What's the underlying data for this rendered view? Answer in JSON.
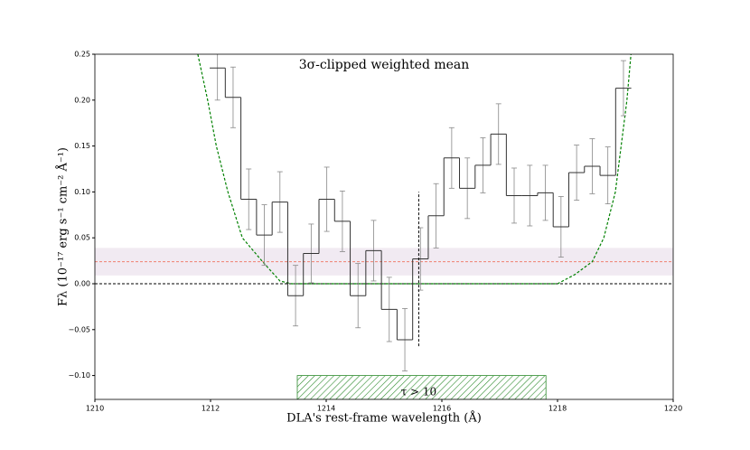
{
  "chart_data": {
    "type": "step",
    "title": "3σ-clipped weighted mean",
    "x_label": "DLA's rest-frame wavelength (Å)",
    "y_label": "Fλ (10⁻¹⁷ erg s⁻¹ cm⁻² Å⁻¹)",
    "x": [
      1212.12,
      1212.39,
      1212.66,
      1212.93,
      1213.2,
      1213.47,
      1213.74,
      1214.01,
      1214.28,
      1214.55,
      1214.82,
      1215.09,
      1215.36,
      1215.63,
      1215.9,
      1216.17,
      1216.44,
      1216.71,
      1216.98,
      1217.25,
      1217.52,
      1217.79,
      1218.06,
      1218.33,
      1218.6,
      1218.87,
      1219.14
    ],
    "values": [
      0.235,
      0.203,
      0.092,
      0.053,
      0.089,
      -0.013,
      0.033,
      0.092,
      0.068,
      -0.013,
      0.036,
      -0.028,
      -0.061,
      0.027,
      0.074,
      0.137,
      0.104,
      0.129,
      0.163,
      0.096,
      0.096,
      0.099,
      0.062,
      0.121,
      0.128,
      0.118,
      0.213
    ],
    "errors": [
      0.035,
      0.033,
      0.033,
      0.033,
      0.033,
      0.033,
      0.032,
      0.035,
      0.033,
      0.035,
      0.033,
      0.035,
      0.034,
      0.034,
      0.035,
      0.033,
      0.033,
      0.03,
      0.033,
      0.03,
      0.033,
      0.03,
      0.033,
      0.03,
      0.03,
      0.031,
      0.03
    ],
    "color": "#333333",
    "model": {
      "x": [
        1211.78,
        1211.95,
        1212.1,
        1212.3,
        1212.55,
        1212.9,
        1213.2,
        1213.4,
        1218.0,
        1218.3,
        1218.6,
        1218.8,
        1219.0,
        1219.1,
        1219.2,
        1219.27
      ],
      "values": [
        0.25,
        0.2,
        0.15,
        0.1,
        0.05,
        0.024,
        0.003,
        0,
        0,
        0.01,
        0.024,
        0.05,
        0.1,
        0.15,
        0.2,
        0.25
      ],
      "color": "#008000"
    },
    "band": [
      0.009,
      0.039
    ],
    "band_color": "#e8dcea",
    "hlines": [
      {
        "y": 0.024,
        "color": "#f08070"
      },
      {
        "y": 0,
        "color": "#000000"
      }
    ],
    "vline": {
      "x": 1215.6,
      "ymin": -0.068,
      "ymax": 0.1
    },
    "hatch": {
      "x": [
        1213.5,
        1217.8
      ],
      "y": [
        -0.1,
        -0.126
      ],
      "label": "τ > 10",
      "color": "#2e8b2e"
    },
    "xlim": [
      1210,
      1220
    ],
    "ylim": [
      -0.126,
      0.25
    ],
    "xticks": [
      1210,
      1212,
      1214,
      1216,
      1218,
      1220
    ],
    "yticks": [
      0.25,
      {
        "value": 0.2,
        "label": "0.20"
      },
      0.15,
      {
        "value": 0.1,
        "label": "0.10"
      },
      0.05,
      {
        "value": 0,
        "label": "0.00"
      },
      {
        "value": -0.05,
        "label": "−0.05"
      },
      {
        "value": -0.1,
        "label": "−0.10"
      }
    ]
  }
}
